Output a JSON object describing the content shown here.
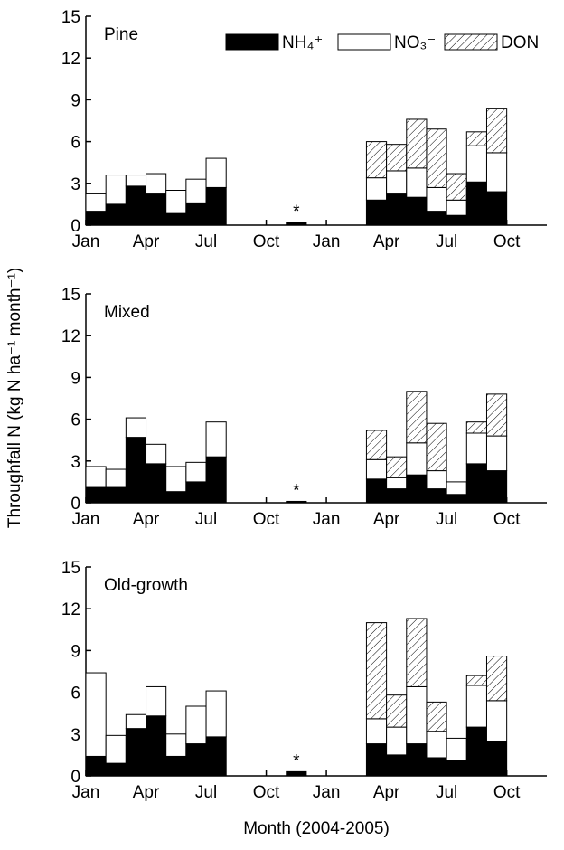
{
  "ylabel": "Throughfall N (kg N ha⁻¹ month⁻¹)",
  "xlabel": "Month (2004-2005)",
  "chart_data": [
    {
      "type": "bar",
      "stacked": true,
      "title": "Pine",
      "legend": "top-right",
      "annotation": "*",
      "categories": [
        "Jan",
        null,
        null,
        "Apr",
        null,
        null,
        "Jul",
        null,
        null,
        "Oct",
        null,
        null,
        "Jan",
        null,
        null,
        "Apr",
        null,
        null,
        "Jul",
        null,
        null,
        "Oct",
        null
      ],
      "ylim": [
        0,
        15
      ],
      "yticks": [
        0,
        3,
        6,
        9,
        12,
        15
      ],
      "series": [
        {
          "name": "NH₄⁺",
          "color": "#000000",
          "values": [
            1.0,
            1.5,
            2.8,
            2.3,
            0.9,
            1.6,
            2.7,
            null,
            null,
            null,
            0.2,
            null,
            null,
            null,
            1.8,
            2.3,
            2.0,
            1.0,
            0.7,
            3.1,
            2.4,
            null,
            null
          ]
        },
        {
          "name": "NO₃⁻",
          "color": "#ffffff",
          "values": [
            1.3,
            2.1,
            0.8,
            1.4,
            1.6,
            1.7,
            2.1,
            null,
            null,
            null,
            null,
            null,
            null,
            null,
            1.6,
            1.6,
            2.1,
            1.7,
            1.1,
            2.6,
            2.8,
            null,
            null
          ]
        },
        {
          "name": "DON",
          "color": "#ffffff",
          "pattern": "hatch",
          "values": [
            null,
            null,
            null,
            null,
            null,
            null,
            null,
            null,
            null,
            null,
            null,
            null,
            null,
            null,
            2.6,
            1.9,
            3.5,
            4.2,
            1.9,
            1.0,
            3.2,
            null,
            null
          ]
        }
      ]
    },
    {
      "type": "bar",
      "stacked": true,
      "title": "Mixed",
      "annotation": "*",
      "categories": [
        "Jan",
        null,
        null,
        "Apr",
        null,
        null,
        "Jul",
        null,
        null,
        "Oct",
        null,
        null,
        "Jan",
        null,
        null,
        "Apr",
        null,
        null,
        "Jul",
        null,
        null,
        "Oct",
        null
      ],
      "ylim": [
        0,
        15
      ],
      "yticks": [
        0,
        3,
        6,
        9,
        12,
        15
      ],
      "series": [
        {
          "color": "#000000",
          "values": [
            1.1,
            1.1,
            4.7,
            2.8,
            0.8,
            1.5,
            3.3,
            null,
            null,
            null,
            0.1,
            null,
            null,
            null,
            1.7,
            1.0,
            2.0,
            1.0,
            0.6,
            2.8,
            2.3,
            null,
            null
          ]
        },
        {
          "color": "#ffffff",
          "values": [
            1.5,
            1.3,
            1.4,
            1.4,
            1.8,
            1.4,
            2.5,
            null,
            null,
            null,
            null,
            null,
            null,
            null,
            1.4,
            0.8,
            2.3,
            1.3,
            0.9,
            2.2,
            2.5,
            null,
            null
          ]
        },
        {
          "color": "#ffffff",
          "pattern": "hatch",
          "values": [
            null,
            null,
            null,
            null,
            null,
            null,
            null,
            null,
            null,
            null,
            null,
            null,
            null,
            null,
            2.1,
            1.5,
            3.7,
            3.4,
            null,
            0.8,
            3.0,
            null,
            null
          ]
        }
      ]
    },
    {
      "type": "bar",
      "stacked": true,
      "title": "Old-growth",
      "annotation": "*",
      "categories": [
        "Jan",
        null,
        null,
        "Apr",
        null,
        null,
        "Jul",
        null,
        null,
        "Oct",
        null,
        null,
        "Jan",
        null,
        null,
        "Apr",
        null,
        null,
        "Jul",
        null,
        null,
        "Oct",
        null
      ],
      "ylim": [
        0,
        15
      ],
      "yticks": [
        0,
        3,
        6,
        9,
        12,
        15
      ],
      "series": [
        {
          "color": "#000000",
          "values": [
            1.4,
            0.9,
            3.4,
            4.3,
            1.4,
            2.3,
            2.8,
            null,
            null,
            null,
            0.3,
            null,
            null,
            null,
            2.3,
            1.5,
            2.3,
            1.3,
            1.1,
            3.5,
            2.5,
            null,
            null
          ]
        },
        {
          "color": "#ffffff",
          "values": [
            6.0,
            2.0,
            1.0,
            2.1,
            1.6,
            2.7,
            3.3,
            null,
            null,
            null,
            null,
            null,
            null,
            null,
            1.8,
            2.0,
            4.1,
            1.9,
            1.6,
            3.0,
            2.9,
            null,
            null
          ]
        },
        {
          "color": "#ffffff",
          "pattern": "hatch",
          "values": [
            null,
            null,
            null,
            null,
            null,
            null,
            null,
            null,
            null,
            null,
            null,
            null,
            null,
            null,
            6.9,
            2.3,
            4.9,
            2.1,
            null,
            0.7,
            3.2,
            null,
            null
          ]
        }
      ]
    }
  ]
}
